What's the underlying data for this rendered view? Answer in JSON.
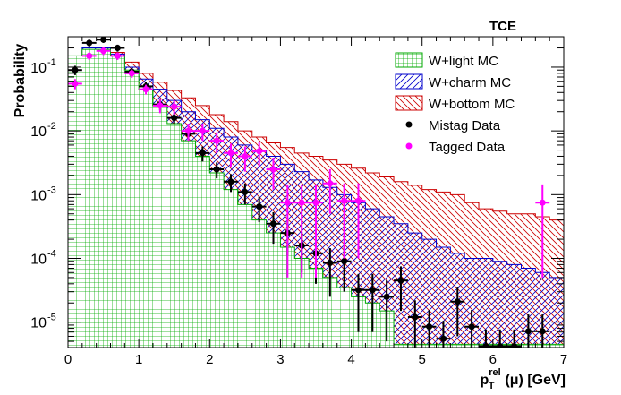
{
  "chart_data": {
    "type": "histogram",
    "title": "TCE",
    "xlabel": {
      "main": "p",
      "sub": "T",
      "sup": "rel",
      "rest": "(μ) [GeV]"
    },
    "ylabel": "Probability",
    "xlim": [
      0,
      7
    ],
    "ylim": [
      4e-06,
      0.3
    ],
    "yscale": "log",
    "bin_width": 0.2,
    "x_ticks": [
      0,
      1,
      2,
      3,
      4,
      5,
      6,
      7
    ],
    "y_ticks": [
      {
        "value": 1e-05,
        "base": "10",
        "exp": "-5"
      },
      {
        "value": 0.0001,
        "base": "10",
        "exp": "-4"
      },
      {
        "value": 0.001,
        "base": "10",
        "exp": "-3"
      },
      {
        "value": 0.01,
        "base": "10",
        "exp": "-2"
      },
      {
        "value": 0.1,
        "base": "10",
        "exp": "-1"
      }
    ],
    "histograms": [
      {
        "name": "W+bottom MC",
        "color": "#cc0000",
        "fill": "diag-back",
        "values": [
          0.1,
          0.18,
          0.18,
          0.17,
          0.12,
          0.08,
          0.058,
          0.043,
          0.033,
          0.025,
          0.018,
          0.014,
          0.01,
          0.008,
          0.0065,
          0.0055,
          0.0045,
          0.004,
          0.0035,
          0.003,
          0.0026,
          0.0022,
          0.0019,
          0.0016,
          0.0014,
          0.0012,
          0.0011,
          0.001,
          0.00075,
          0.0006,
          0.00055,
          0.0005,
          0.0005,
          0.00045,
          0.0004
        ]
      },
      {
        "name": "W+charm MC",
        "color": "#0000cc",
        "fill": "diag-fwd",
        "values": [
          0.12,
          0.2,
          0.2,
          0.16,
          0.1,
          0.065,
          0.045,
          0.03,
          0.02,
          0.015,
          0.011,
          0.008,
          0.006,
          0.005,
          0.004,
          0.003,
          0.0023,
          0.0017,
          0.0013,
          0.001,
          0.00075,
          0.0006,
          0.00045,
          0.00035,
          0.00025,
          0.0002,
          0.00015,
          0.00012,
          0.0001,
          0.0001,
          9e-05,
          8e-05,
          7e-05,
          6e-05,
          5e-05
        ]
      },
      {
        "name": "W+light MC",
        "color": "#00aa00",
        "fill": "grid",
        "values": [
          0.15,
          0.19,
          0.19,
          0.15,
          0.09,
          0.045,
          0.025,
          0.013,
          0.007,
          0.004,
          0.0022,
          0.0012,
          0.0007,
          0.0004,
          0.00025,
          0.00015,
          0.0001,
          7e-05,
          5e-05,
          3.5e-05,
          2.5e-05,
          2e-05,
          1.5e-05,
          4.5e-06,
          4.5e-06,
          4.5e-06,
          4.5e-06,
          4.5e-06,
          4.5e-06,
          4.5e-06,
          4.5e-06,
          4.5e-06,
          4.5e-06,
          4.5e-06,
          4.5e-06
        ]
      }
    ],
    "points": [
      {
        "name": "Mistag Data",
        "color": "#000000",
        "x": [
          0.1,
          0.3,
          0.5,
          0.7,
          0.9,
          1.1,
          1.3,
          1.5,
          1.7,
          1.9,
          2.1,
          2.3,
          2.5,
          2.7,
          2.9,
          3.1,
          3.3,
          3.5,
          3.7,
          3.9,
          4.1,
          4.3,
          4.5,
          4.7,
          4.9,
          5.1,
          5.3,
          5.5,
          5.7,
          5.9,
          6.1,
          6.3,
          6.5,
          6.7
        ],
        "y": [
          0.09,
          0.24,
          0.27,
          0.2,
          0.085,
          0.05,
          0.026,
          0.016,
          0.009,
          0.0045,
          0.0025,
          0.0016,
          0.0011,
          0.00065,
          0.00035,
          0.00025,
          0.00016,
          0.00012,
          8.5e-05,
          9e-05,
          3.2e-05,
          3.2e-05,
          2.5e-05,
          4.5e-05,
          1.2e-05,
          8.5e-06,
          5.5e-06,
          2.1e-05,
          8.5e-06,
          4.2e-06,
          4.2e-06,
          4.2e-06,
          7.2e-06,
          7.2e-06
        ],
        "err": [
          0.015,
          0.03,
          0.03,
          0.025,
          0.012,
          0.008,
          0.005,
          0.003,
          0.002,
          0.0012,
          0.0007,
          0.0005,
          0.0004,
          0.00028,
          0.00018,
          0.00014,
          0.0001,
          8e-05,
          6e-05,
          6e-05,
          2.5e-05,
          2.5e-05,
          2e-05,
          3e-05,
          1e-05,
          7e-06,
          5e-06,
          1.5e-05,
          7e-06,
          3.5e-06,
          3.5e-06,
          3.5e-06,
          6e-06,
          6e-06
        ]
      },
      {
        "name": "Tagged Data",
        "color": "#ff00ff",
        "x": [
          0.1,
          0.3,
          0.5,
          0.7,
          0.9,
          1.1,
          1.3,
          1.5,
          1.7,
          1.9,
          2.1,
          2.3,
          2.5,
          2.7,
          2.9,
          3.1,
          3.3,
          3.5,
          3.7,
          3.9,
          4.1,
          6.7
        ],
        "y": [
          0.055,
          0.15,
          0.18,
          0.15,
          0.08,
          0.045,
          0.025,
          0.024,
          0.01,
          0.01,
          0.007,
          0.0045,
          0.004,
          0.0048,
          0.0025,
          0.00075,
          0.00075,
          0.00075,
          0.0015,
          0.0008,
          0.0008,
          0.00075
        ],
        "err": [
          0.01,
          0.02,
          0.025,
          0.02,
          0.012,
          0.008,
          0.006,
          0.006,
          0.003,
          0.003,
          0.0025,
          0.0018,
          0.0017,
          0.002,
          0.0013,
          0.0007,
          0.0007,
          0.0007,
          0.001,
          0.0007,
          0.0007,
          0.0007
        ]
      }
    ],
    "legend": [
      {
        "label": "W+light MC",
        "type": "fill",
        "color": "#00aa00"
      },
      {
        "label": "W+charm MC",
        "type": "fill",
        "color": "#0000cc"
      },
      {
        "label": "W+bottom MC",
        "type": "fill",
        "color": "#cc0000"
      },
      {
        "label": "Mistag Data",
        "type": "marker",
        "color": "#000000"
      },
      {
        "label": "Tagged Data",
        "type": "marker",
        "color": "#ff00ff"
      }
    ],
    "legend_position": "top-right"
  }
}
